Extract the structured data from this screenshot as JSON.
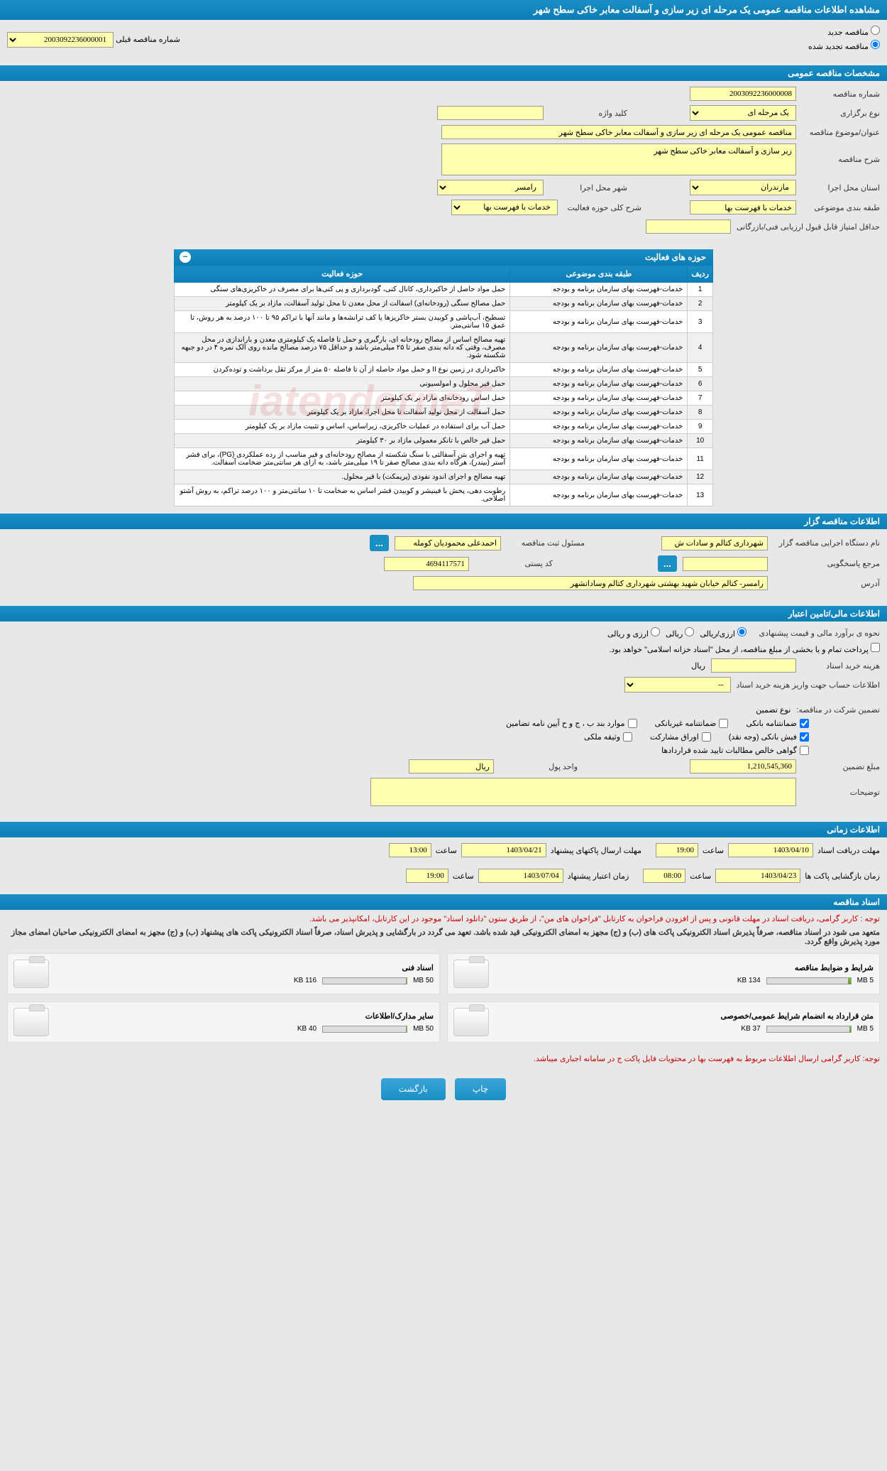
{
  "page_title": "مشاهده اطلاعات مناقصه عمومی یک مرحله ای زیر سازی و آسفالت معابر خاکی سطح شهر",
  "radio_options": {
    "new": "مناقصه جدید",
    "renewed": "مناقصه تجدید شده"
  },
  "prev_tender_label": "شماره مناقصه قبلی",
  "prev_tender_value": "2003092236000001",
  "sections": {
    "general": "مشخصات مناقصه عمومی",
    "activities": "حوزه های فعالیت",
    "organizer": "اطلاعات مناقصه گزار",
    "financial": "اطلاعات مالی/تامین اعتبار",
    "timing": "اطلاعات زمانی",
    "docs": "اسناد مناقصه"
  },
  "general": {
    "tender_no_label": "شماره مناقصه",
    "tender_no": "2003092236000008",
    "type_label": "نوع برگزاری",
    "type_value": "یک مرحله ای",
    "keyword_label": "کلید واژه",
    "subject_label": "عنوان/موضوع مناقصه",
    "subject_value": "مناقصه عمومی یک مرحله ای زیر سازی و آسفالت معابر خاکی سطح شهر",
    "desc_label": "شرح مناقصه",
    "desc_value": "زیر سازی و آسفالت معابر خاکی سطح شهر",
    "province_label": "استان محل اجرا",
    "province_value": "مازندران",
    "city_label": "شهر محل اجرا",
    "city_value": "رامسر",
    "category_label": "طبقه بندی موضوعی",
    "category_value": "خدمات با فهرست بها",
    "scope_label": "شرح کلی حوزه فعالیت",
    "scope_value": "خدمات با فهرست بها",
    "min_score_label": "حداقل امتیاز قابل قبول ارزیابی فنی/بازرگانی"
  },
  "activity_table": {
    "headers": {
      "row": "ردیف",
      "category": "طبقه بندی موضوعی",
      "activity": "حوزه فعالیت"
    },
    "category_text": "خدمات-فهرست بهای سازمان برنامه و بودجه",
    "rows": [
      {
        "n": 1,
        "act": "حمل مواد حاصل از خاکبرداری، کانال کنی، گودبرداری و پی کنی‌ها برای مصرف در خاکریزی‌های سنگی"
      },
      {
        "n": 2,
        "act": "حمل مصالح سنگی (رودخانه‌ای) اسفالت از محل معدن تا محل تولید آسفالت، مازاد بر یک کیلومتر"
      },
      {
        "n": 3,
        "act": "تسطیح، آب‌پاشی و کوبیدن بستر خاکریزها یا کف ترانشه‌ها و مانند آنها با تراکم ۹۵ تا ۱۰۰ درصد به هر روش، تا عمق ۱۵ سانتی‌متر."
      },
      {
        "n": 4,
        "act": "تهیه مصالح اساس از مصالح رودخانه ای، بارگیری و حمل تا فاصله یک کیلومتری معدن و باراندازی در محل مصرف، وقتی که دانه بندی صفر تا ۲۵ میلی‌متر باشد و حداقل ۷۵ درصد مصالح مانده روی الک نمره ۴ در دو جبهه شکسته شود."
      },
      {
        "n": 5,
        "act": "خاکبرداری در زمین نوع II و حمل مواد حاصله از آن تا فاصله ۵۰ متر از مرکز ثقل برداشت و توده‌کردن"
      },
      {
        "n": 6,
        "act": "حمل قیر محلول و امولسيونى"
      },
      {
        "n": 7,
        "act": "حمل اساس رودخانه‌ای مازاد بر یک کیلومتر"
      },
      {
        "n": 8,
        "act": "حمل آسفالت از محل تولید آسفالت تا محل اجرا، مازاد بر یک کیلومتر"
      },
      {
        "n": 9,
        "act": "حمل آب برای استفاده در عملیات خاکریزی، زیراساس، اساس و تثبیت مازاد بر یک کیلومتر"
      },
      {
        "n": 10,
        "act": "حمل قیر خالص با تانکر معمولی مازاد بر ۳۰ کیلومتر"
      },
      {
        "n": 11,
        "act": "تهیه و اجرای بتن آسفالتی با سنگ شکسته از مصالح رودخانه‌ای و قیر مناسب از رده عملکردی (PG)، برای قشر آستر (بیندر)، هرگاه دانه بندی مصالح صفر تا ۱۹ میلی‌متر باشد، به ازای هر سانتی‌متر ضخامت آسفالت."
      },
      {
        "n": 12,
        "act": "تهیه مصالح و اجرای اندود نفوذی (پریمکت) با قیر محلول."
      },
      {
        "n": 13,
        "act": "رطوبت دهی، پخش با فینیشر و کوبیدن قشر اساس به ضخامت تا ۱۰ سانتی‌متر و ۱۰۰ درصد تراکم، به روش آشتو اصلاحی."
      }
    ]
  },
  "organizer": {
    "name_label": "نام دستگاه اجرایی مناقصه گزار",
    "name_value": "شهرداری کتالم و سادات ش",
    "responsible_label": "مسئول ثبت مناقصه",
    "responsible_value": "احمدعلی محمودیان کومله",
    "more": "...",
    "ref_label": "مرجع پاسخگویی",
    "postal_label": "کد پستی",
    "postal_value": "4694117571",
    "address_label": "آدرس",
    "address_value": "رامسر- کتالم خیابان شهید بهشتی شهرداری کتالم وساداتشهر"
  },
  "financial": {
    "estimate_label": "نحوه ی برآورد مالی و قیمت پیشنهادی",
    "currency_rial": "ارزی/ریالی",
    "currency_both": "ریالی",
    "currency_foreign": "ارزی و ریالی",
    "pay_note": "پرداخت تمام و یا بخشی از مبلغ مناقصه، از محل \"اسناد خزانه اسلامی\" خواهد بود.",
    "doc_cost_label": "هزینه خرید اسناد",
    "unit_rial": "ریال",
    "account_label": "اطلاعات حساب جهت واریز هزینه خرید اسناد",
    "account_placeholder": "--",
    "guarantee_label": "تضمین شرکت در مناقصه:",
    "guarantee_type_label": "نوع تضمین",
    "checks": {
      "bank_guarantee": "ضمانتنامه بانکی",
      "nonbank_guarantee": "ضمانتنامه غیربانکی",
      "cases_bjh": "موارد بند ب ، ج و ح آیین نامه تضامین",
      "bank_receipt": "فیش بانکی (وجه نقد)",
      "participation_bonds": "اوراق مشارکت",
      "property_deed": "وثیقه ملکی",
      "net_receivables": "گواهی خالص مطالبات تایید شده قراردادها"
    },
    "guarantee_amount_label": "مبلغ تضمین",
    "guarantee_amount": "1,210,545,360",
    "unit_label": "واحد پول",
    "unit_value": "ریال",
    "notes_label": "توضیحات"
  },
  "timing": {
    "receive_label": "مهلت دریافت اسناد",
    "receive_date": "1403/04/10",
    "receive_time_label": "ساعت",
    "receive_time": "19:00",
    "send_label": "مهلت ارسال پاکتهای پیشنهاد",
    "send_date": "1403/04/21",
    "send_time": "13:00",
    "open_label": "زمان بازگشایی پاکت ها",
    "open_date": "1403/04/23",
    "open_time": "08:00",
    "valid_label": "زمان اعتبار پیشنهاد",
    "valid_date": "1403/07/04",
    "valid_time": "19:00"
  },
  "docs": {
    "notice1": "توجه : کاربر گرامی، دریافت اسناد در مهلت قانونی و پس از افزودن فراخوان به کارتابل \"فراخوان های من\"، از طریق ستون \"دانلود اسناد\" موجود در این کارتابل، امکانپذیر می باشد.",
    "notice2": "متعهد می شود در اسناد مناقصه، صرفاً پذیرش اسناد الکترونیکی پاکت های (ب) و (ج) مجهز به امضای الکترونیکی قید شده باشد. تعهد می گردد در بارگشایی و پذیرش اسناد، صرفاً اسناد الکترونیکی پاکت های پیشنهاد (ب) و (ج) مجهز به امضای الکترونیکی صاحبان امضای مجاز مورد پذیرش واقع گردد.",
    "items": [
      {
        "title": "شرایط و ضوابط مناقصه",
        "max": "5 MB",
        "cur": "134 KB",
        "pct": 3
      },
      {
        "title": "اسناد فنی",
        "max": "50 MB",
        "cur": "116 KB",
        "pct": 1
      },
      {
        "title": "متن قرارداد به انضمام شرایط عمومی/خصوصی",
        "max": "5 MB",
        "cur": "37 KB",
        "pct": 1
      },
      {
        "title": "سایر مدارک/اطلاعات",
        "max": "50 MB",
        "cur": "40 KB",
        "pct": 1
      }
    ],
    "footer_note": "توجه: کاربر گرامی ارسال اطلاعات مربوط به فهرست بها در محتویات فایل پاکت ج در سامانه اجباری میباشد."
  },
  "buttons": {
    "print": "چاپ",
    "back": "بازگشت"
  },
  "watermark": "iatenderneT"
}
